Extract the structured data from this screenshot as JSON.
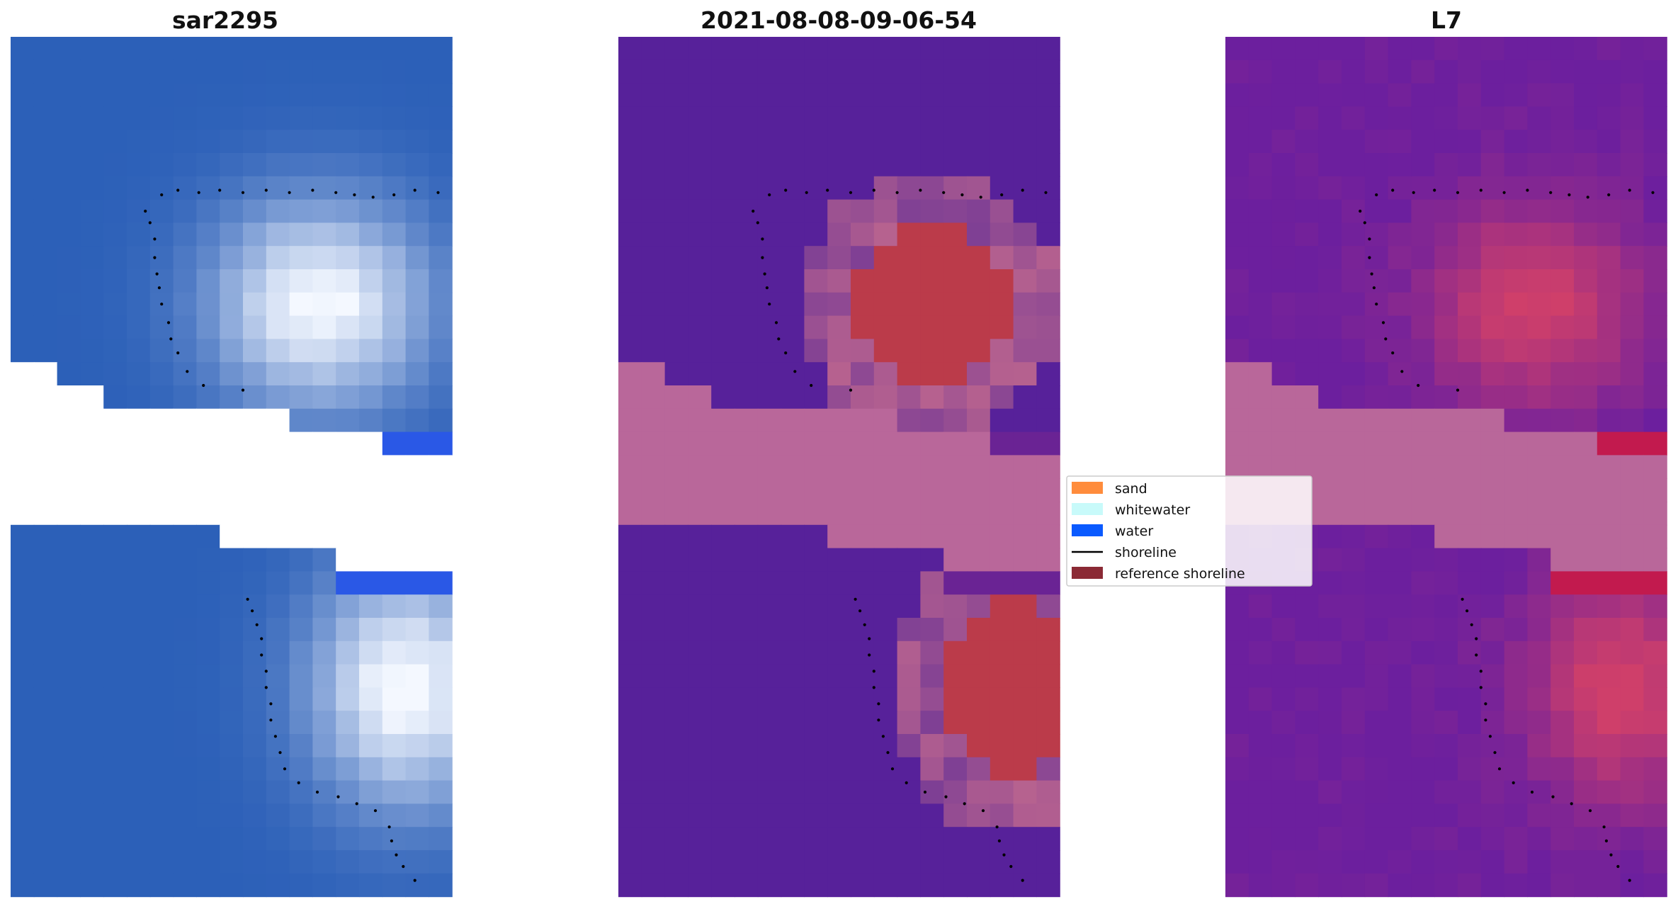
{
  "chart_data": [
    {
      "type": "heatmap",
      "title": "sar2295",
      "image": "rgb-satellite-tile",
      "grid_cols": 19,
      "grid_rows": 37,
      "missing_strip_rows": [
        18,
        19,
        20
      ]
    },
    {
      "type": "heatmap",
      "title": "2021-08-08-09-06-54",
      "image": "classified-tile",
      "grid_cols": 19,
      "grid_rows": 37,
      "legend": {
        "placement": "center",
        "entries": [
          {
            "label": "sand",
            "kind": "patch",
            "color": "#ff8c3c"
          },
          {
            "label": "whitewater",
            "kind": "patch",
            "color": "#c8fafa"
          },
          {
            "label": "water",
            "kind": "patch",
            "color": "#0a5aff"
          },
          {
            "label": "shoreline",
            "kind": "line",
            "color": "#000000"
          },
          {
            "label": "reference shoreline",
            "kind": "patch",
            "color": "#8b2a35"
          }
        ]
      }
    },
    {
      "type": "heatmap",
      "title": "L7",
      "image": "probability-tile",
      "grid_cols": 19,
      "grid_rows": 37
    }
  ],
  "colors": {
    "nodata_fill": "#b9679a",
    "sea_blue": "#2c60b8",
    "water_class": "#57219a",
    "sand_class": "#bb3b4a",
    "prob_low": "#6c1f9e",
    "prob_high": "#c21a4e"
  }
}
